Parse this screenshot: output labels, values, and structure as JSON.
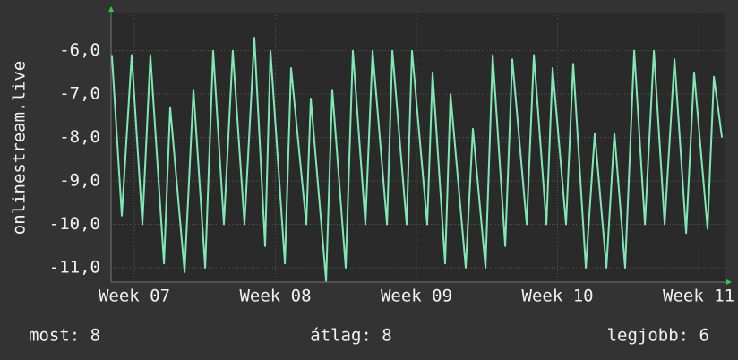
{
  "chart_data": {
    "type": "line",
    "y_label": "onlinestream.live",
    "x": [
      6.841,
      6.911,
      6.981,
      7.057,
      7.114,
      7.21,
      7.254,
      7.356,
      7.419,
      7.502,
      7.559,
      7.635,
      7.698,
      7.781,
      7.851,
      7.927,
      7.965,
      8.067,
      8.111,
      8.219,
      8.251,
      8.359,
      8.403,
      8.498,
      8.549,
      8.638,
      8.689,
      8.791,
      8.829,
      8.93,
      8.968,
      9.076,
      9.114,
      9.203,
      9.241,
      9.349,
      9.4,
      9.489,
      9.54,
      9.629,
      9.679,
      9.781,
      9.832,
      9.921,
      9.965,
      10.06,
      10.111,
      10.2,
      10.264,
      10.346,
      10.403,
      10.479,
      10.543,
      10.619,
      10.683,
      10.759,
      10.829,
      10.911,
      10.968,
      11.063,
      11.108,
      11.165
    ],
    "series": [
      {
        "color": "#7fe8b4",
        "values": [
          -6.1,
          -9.8,
          -6.1,
          -10.0,
          -6.1,
          -10.9,
          -7.3,
          -11.1,
          -6.9,
          -11.0,
          -6.0,
          -10.0,
          -6.0,
          -10.0,
          -5.7,
          -10.5,
          -6.0,
          -10.9,
          -6.4,
          -10.0,
          -7.1,
          -11.3,
          -6.9,
          -11.0,
          -6.0,
          -10.0,
          -6.0,
          -10.0,
          -6.0,
          -10.0,
          -6.0,
          -10.0,
          -6.5,
          -10.9,
          -7.0,
          -11.0,
          -7.8,
          -11.0,
          -6.1,
          -10.5,
          -6.2,
          -10.0,
          -6.1,
          -10.0,
          -6.4,
          -10.0,
          -6.3,
          -11.0,
          -7.9,
          -11.0,
          -7.9,
          -11.0,
          -6.0,
          -10.0,
          -6.0,
          -10.0,
          -6.2,
          -10.2,
          -6.5,
          -10.1,
          -6.6,
          -8.0
        ]
      }
    ],
    "xlim": [
      6.835,
      11.19
    ],
    "xticks": [
      {
        "value": 7,
        "label": "Week 07"
      },
      {
        "value": 8,
        "label": "Week 08"
      },
      {
        "value": 9,
        "label": "Week 09"
      },
      {
        "value": 10,
        "label": "Week 10"
      },
      {
        "value": 11,
        "label": "Week 11"
      }
    ],
    "ylim": [
      -11.33,
      -5.12
    ],
    "yticks": [
      {
        "value": -11,
        "label": "-11,0"
      },
      {
        "value": -10,
        "label": "-10,0"
      },
      {
        "value": -9,
        "label": "-9,0"
      },
      {
        "value": -8,
        "label": "-8,0"
      },
      {
        "value": -7,
        "label": "-7,0"
      },
      {
        "value": -6,
        "label": "-6,0"
      }
    ],
    "grid": true
  },
  "footer": [
    "most: 8",
    "átlag: 8",
    "legjobb: 6"
  ]
}
